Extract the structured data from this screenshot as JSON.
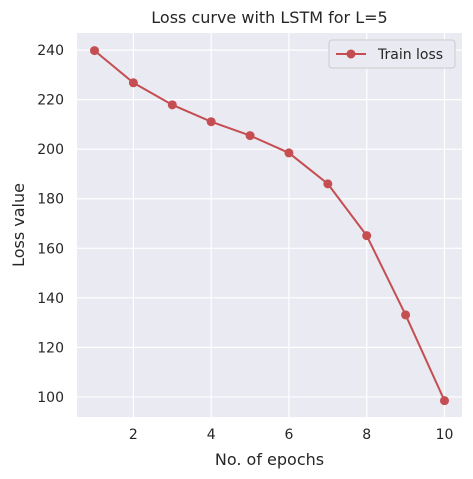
{
  "chart_data": {
    "type": "line",
    "title": "Loss curve with LSTM for L=5",
    "xlabel": "No. of epochs",
    "ylabel": "Loss value",
    "xlim": [
      0.55,
      10.45
    ],
    "ylim": [
      91.9,
      246.9
    ],
    "xticks": [
      2,
      4,
      6,
      8,
      10
    ],
    "yticks": [
      100,
      120,
      140,
      160,
      180,
      200,
      220,
      240
    ],
    "grid": true,
    "legend_position": "top-right",
    "series": [
      {
        "name": "Train loss",
        "color": "#c44e52",
        "marker": "circle",
        "x": [
          1,
          2,
          3,
          4,
          5,
          6,
          7,
          8,
          9,
          10
        ],
        "y": [
          239.8,
          226.8,
          217.9,
          211.1,
          205.5,
          198.5,
          186.0,
          165.1,
          133.1,
          98.5
        ]
      }
    ]
  },
  "colors": {
    "plot_background": "#eaeaf2",
    "grid": "#ffffff",
    "text": "#262626"
  }
}
